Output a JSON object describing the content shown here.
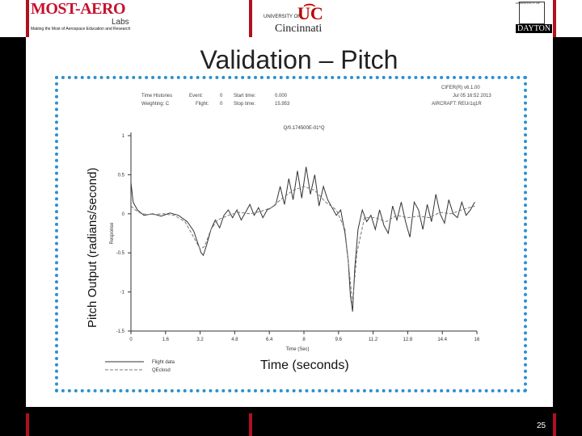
{
  "header": {
    "most_aero_brand": "MOST-AERO",
    "most_aero_labs": "Labs",
    "most_aero_tagline": "Making the Most of Aerospace Education and Research",
    "uc_university_of": "UNIVERSITY OF",
    "uc_name": "Cincinnati",
    "ud_university_of": "UNIVERSITY OF",
    "ud_name": "DAYTON"
  },
  "slide": {
    "title": "Validation – Pitch",
    "y_axis_label": "Pitch Output (radians/second)",
    "x_axis_label": "Time (seconds)",
    "page_number": "25"
  },
  "plot_info": {
    "time_histories": "Time Histories",
    "weighting": "Weighting: C",
    "event": "Event:",
    "event_value": "0",
    "flight": "Flight:",
    "flight_value": "0",
    "start_time_label": "Start time:",
    "start_time_value": "0.000",
    "stop_time_label": "Stop time:",
    "stop_time_value": "15.953",
    "cifer_version": "CIFER(R) v6.1.00",
    "date": "Jul 05 16:52 2013",
    "aircraft": "AIRCRAFT: REUr1q1R",
    "plot_title": "Q/0.174500E-01*Q",
    "response_label": "Response",
    "time_label": "Time (Sec)"
  },
  "colors": {
    "accent_red": "#b01020",
    "frame_blue": "#2f8fd0",
    "flight_line": "#333333",
    "model_line": "#777777"
  },
  "chart_data": {
    "type": "line",
    "title": "Q/0.174500E-01*Q",
    "xlabel": "Time (Sec)",
    "ylabel": "Response",
    "xlim": [
      0,
      16
    ],
    "ylim": [
      -1.5,
      1
    ],
    "xticks": [
      0,
      1.6,
      3.2,
      4.8,
      6.4,
      8,
      9.6,
      11.2,
      12.8,
      14.4,
      16
    ],
    "yticks": [
      -1.5,
      -1,
      -0.5,
      0,
      0.5,
      1
    ],
    "grid": false,
    "legend_position": "bottom-left",
    "series": [
      {
        "name": "Flight data",
        "style": "solid",
        "x": [
          0,
          0.1,
          0.3,
          0.6,
          1.0,
          1.4,
          1.8,
          2.2,
          2.6,
          2.9,
          3.1,
          3.25,
          3.35,
          3.5,
          3.7,
          3.9,
          4.1,
          4.3,
          4.5,
          4.7,
          4.9,
          5.1,
          5.3,
          5.5,
          5.7,
          5.9,
          6.1,
          6.3,
          6.5,
          6.7,
          6.9,
          7.1,
          7.3,
          7.5,
          7.7,
          7.9,
          8.1,
          8.3,
          8.5,
          8.7,
          8.9,
          9.1,
          9.3,
          9.5,
          9.7,
          9.9,
          10.05,
          10.15,
          10.25,
          10.35,
          10.5,
          10.7,
          10.9,
          11.1,
          11.3,
          11.5,
          11.7,
          11.9,
          12.1,
          12.3,
          12.5,
          12.7,
          12.9,
          13.1,
          13.3,
          13.5,
          13.7,
          13.9,
          14.1,
          14.3,
          14.5,
          14.7,
          14.9,
          15.1,
          15.3,
          15.5,
          15.7,
          15.9
        ],
        "y": [
          0.4,
          0.15,
          0.05,
          -0.02,
          0.0,
          -0.03,
          0.01,
          -0.02,
          -0.1,
          -0.22,
          -0.38,
          -0.5,
          -0.53,
          -0.4,
          -0.2,
          -0.08,
          -0.18,
          -0.02,
          0.05,
          -0.05,
          0.05,
          -0.08,
          0.02,
          0.12,
          -0.02,
          0.08,
          -0.05,
          0.05,
          0.08,
          0.12,
          0.35,
          0.12,
          0.45,
          0.18,
          0.55,
          0.2,
          0.6,
          0.25,
          0.5,
          0.1,
          0.35,
          0.18,
          0.08,
          -0.02,
          0.05,
          -0.25,
          -0.6,
          -1.05,
          -1.25,
          -0.7,
          -0.2,
          0.05,
          -0.1,
          -0.02,
          -0.2,
          0.05,
          -0.15,
          -0.25,
          0.1,
          -0.08,
          0.15,
          -0.1,
          -0.3,
          0.15,
          0.05,
          -0.2,
          0.12,
          -0.1,
          0.25,
          0.0,
          -0.12,
          0.18,
          0.0,
          -0.05,
          0.15,
          -0.02,
          0.05,
          0.15
        ]
      },
      {
        "name": "QEclosd",
        "style": "dashed",
        "x": [
          0,
          0.2,
          0.5,
          1.0,
          1.5,
          2.0,
          2.5,
          2.9,
          3.2,
          3.4,
          3.7,
          4.0,
          4.5,
          5.0,
          5.5,
          6.0,
          6.5,
          7.0,
          7.5,
          8.0,
          8.5,
          9.0,
          9.5,
          9.9,
          10.1,
          10.25,
          10.45,
          10.8,
          11.3,
          11.8,
          12.3,
          12.8,
          13.3,
          13.8,
          14.3,
          14.8,
          15.3,
          15.9
        ],
        "y": [
          0.1,
          0.05,
          0.0,
          -0.01,
          0.0,
          -0.02,
          -0.1,
          -0.3,
          -0.45,
          -0.42,
          -0.2,
          -0.08,
          -0.02,
          0.02,
          0.0,
          0.03,
          0.08,
          0.2,
          0.3,
          0.35,
          0.3,
          0.15,
          0.05,
          -0.2,
          -0.75,
          -1.15,
          -0.5,
          -0.05,
          -0.05,
          -0.1,
          -0.02,
          -0.05,
          -0.03,
          -0.05,
          0.02,
          0.0,
          0.05,
          0.1
        ]
      }
    ]
  }
}
